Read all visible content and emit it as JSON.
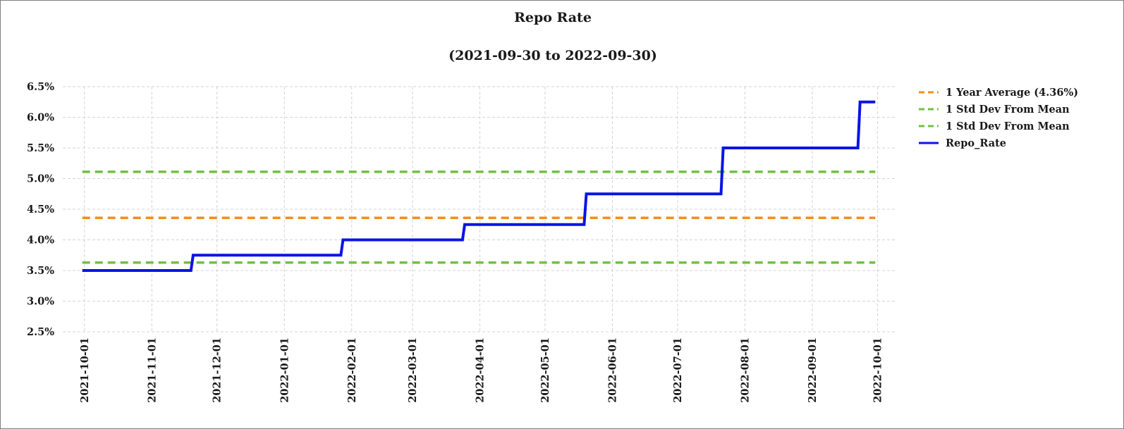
{
  "chart_data": {
    "type": "line",
    "title": "Repo Rate",
    "subtitle": "(2021-09-30 to 2022-09-30)",
    "xlabel": "",
    "ylabel": "",
    "x_axis": {
      "range": [
        "2021-09-30",
        "2022-09-30"
      ],
      "ticks": [
        "2021-10-01",
        "2021-11-01",
        "2021-12-01",
        "2022-01-01",
        "2022-02-01",
        "2022-03-01",
        "2022-04-01",
        "2022-05-01",
        "2022-06-01",
        "2022-07-01",
        "2022-08-01",
        "2022-09-01",
        "2022-10-01"
      ]
    },
    "y_axis": {
      "range": [
        2.5,
        6.5
      ],
      "ticks": [
        2.5,
        3.0,
        3.5,
        4.0,
        4.5,
        5.0,
        5.5,
        6.0,
        6.5
      ],
      "tick_labels": [
        "2.5%",
        "3.0%",
        "3.5%",
        "4.0%",
        "4.5%",
        "5.0%",
        "5.5%",
        "6.0%",
        "6.5%"
      ]
    },
    "grid": true,
    "legend_position": "right",
    "series": [
      {
        "name": "1 Year Average (4.36%)",
        "style": "dashed",
        "color": "#f28e1c",
        "points": [
          [
            "2021-09-30",
            4.36
          ],
          [
            "2022-09-30",
            4.36
          ]
        ]
      },
      {
        "name": "1 Std Dev From Mean",
        "style": "dashed",
        "color": "#72bf44",
        "points": [
          [
            "2021-09-30",
            5.11
          ],
          [
            "2022-09-30",
            5.11
          ]
        ]
      },
      {
        "name": "1 Std Dev From Mean",
        "style": "dashed",
        "color": "#72bf44",
        "points": [
          [
            "2021-09-30",
            3.63
          ],
          [
            "2022-09-30",
            3.63
          ]
        ]
      },
      {
        "name": "Repo_Rate",
        "style": "solid",
        "color": "#0a14e6",
        "points": [
          [
            "2021-09-30",
            3.5
          ],
          [
            "2021-11-19",
            3.5
          ],
          [
            "2021-11-20",
            3.75
          ],
          [
            "2022-01-27",
            3.75
          ],
          [
            "2022-01-28",
            4.0
          ],
          [
            "2022-03-24",
            4.0
          ],
          [
            "2022-03-25",
            4.25
          ],
          [
            "2022-05-19",
            4.25
          ],
          [
            "2022-05-20",
            4.75
          ],
          [
            "2022-07-21",
            4.75
          ],
          [
            "2022-07-22",
            5.5
          ],
          [
            "2022-09-22",
            5.5
          ],
          [
            "2022-09-23",
            6.25
          ],
          [
            "2022-09-30",
            6.25
          ]
        ]
      }
    ]
  }
}
